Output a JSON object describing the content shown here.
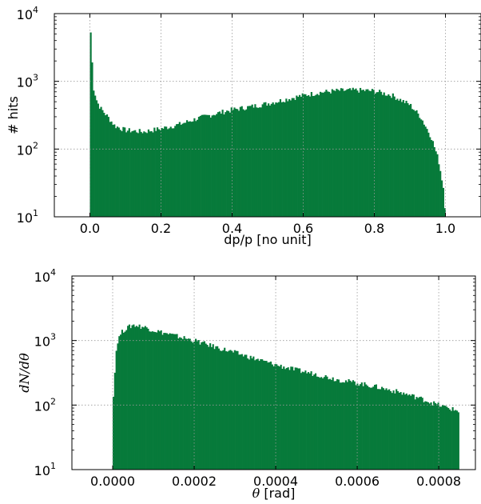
{
  "chart_data": [
    {
      "type": "bar",
      "subtype": "histogram",
      "xlabel": "dp/p [no unit]",
      "ylabel": "# hits",
      "xlim": [
        -0.1,
        1.1
      ],
      "ylim": [
        10,
        10000
      ],
      "yscale": "log",
      "grid": true,
      "color": "#077a3a",
      "xticks": [
        "0.0",
        "0.2",
        "0.4",
        "0.6",
        "0.8",
        "1.0"
      ],
      "xtick_values": [
        0.0,
        0.2,
        0.4,
        0.6,
        0.8,
        1.0
      ],
      "yticks": [
        {
          "base": "10",
          "exp": "1",
          "value": 10
        },
        {
          "base": "10",
          "exp": "2",
          "value": 100
        },
        {
          "base": "10",
          "exp": "3",
          "value": 1000
        },
        {
          "base": "10",
          "exp": "4",
          "value": 10000
        }
      ],
      "x": [
        0.0,
        0.005,
        0.01,
        0.02,
        0.03,
        0.05,
        0.07,
        0.1,
        0.15,
        0.2,
        0.25,
        0.3,
        0.35,
        0.4,
        0.45,
        0.5,
        0.55,
        0.6,
        0.65,
        0.7,
        0.75,
        0.8,
        0.85,
        0.9,
        0.93,
        0.96,
        0.98,
        0.995,
        1.0
      ],
      "values": [
        9000,
        2500,
        800,
        500,
        400,
        300,
        220,
        190,
        180,
        200,
        230,
        280,
        330,
        380,
        420,
        470,
        540,
        620,
        690,
        730,
        740,
        720,
        620,
        450,
        300,
        150,
        70,
        25,
        10
      ]
    },
    {
      "type": "bar",
      "subtype": "histogram",
      "xlabel_symbol": "θ",
      "xlabel_unit": " [rad]",
      "ylabel": "dN/dθ",
      "xlim": [
        -0.0001,
        0.00089
      ],
      "ylim": [
        10,
        10000
      ],
      "yscale": "log",
      "grid": true,
      "color": "#077a3a",
      "xticks": [
        "0.0000",
        "0.0002",
        "0.0004",
        "0.0006",
        "0.0008"
      ],
      "xtick_values": [
        0.0,
        0.0002,
        0.0004,
        0.0006,
        0.0008
      ],
      "yticks": [
        {
          "base": "10",
          "exp": "1",
          "value": 10
        },
        {
          "base": "10",
          "exp": "2",
          "value": 100
        },
        {
          "base": "10",
          "exp": "3",
          "value": 1000
        },
        {
          "base": "10",
          "exp": "4",
          "value": 10000
        }
      ],
      "x": [
        0.0,
        1e-05,
        2e-05,
        3e-05,
        5e-05,
        8e-05,
        0.0001,
        0.00015,
        0.0002,
        0.00025,
        0.0003,
        0.00035,
        0.0004,
        0.00045,
        0.0005,
        0.00055,
        0.0006,
        0.00065,
        0.0007,
        0.00075,
        0.0008,
        0.00085
      ],
      "values": [
        100,
        900,
        1300,
        1500,
        1750,
        1600,
        1450,
        1200,
        1000,
        800,
        650,
        520,
        420,
        350,
        300,
        250,
        220,
        190,
        160,
        130,
        100,
        80
      ]
    }
  ]
}
